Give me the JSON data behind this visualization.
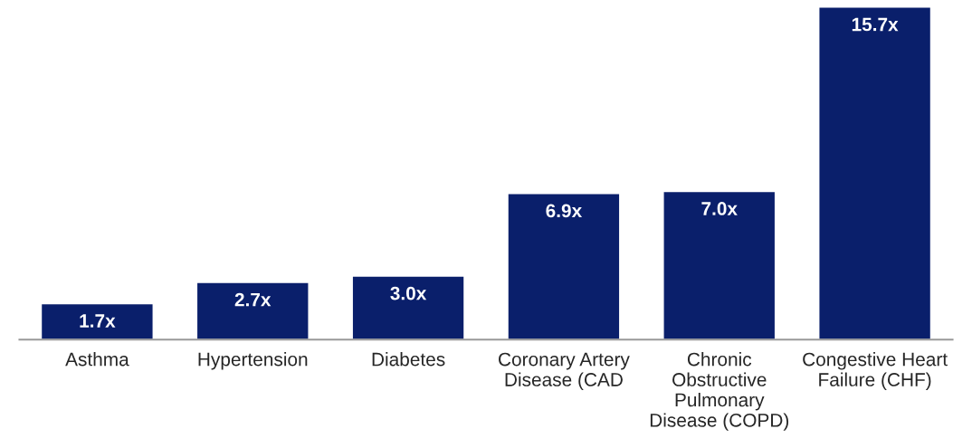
{
  "chart_data": {
    "type": "bar",
    "categories": [
      "Asthma",
      "Hypertension",
      "Diabetes",
      "Coronary Artery\nDisease (CAD",
      "Chronic\nObstructive\nPulmonary\nDisease (COPD)",
      "Congestive Heart\nFailure (CHF)"
    ],
    "values": [
      1.7,
      2.7,
      3.0,
      6.9,
      7.0,
      15.7
    ],
    "value_labels": [
      "1.7x",
      "2.7x",
      "3.0x",
      "6.9x",
      "7.0x",
      "15.7x"
    ],
    "color": "#0a1f6b"
  }
}
